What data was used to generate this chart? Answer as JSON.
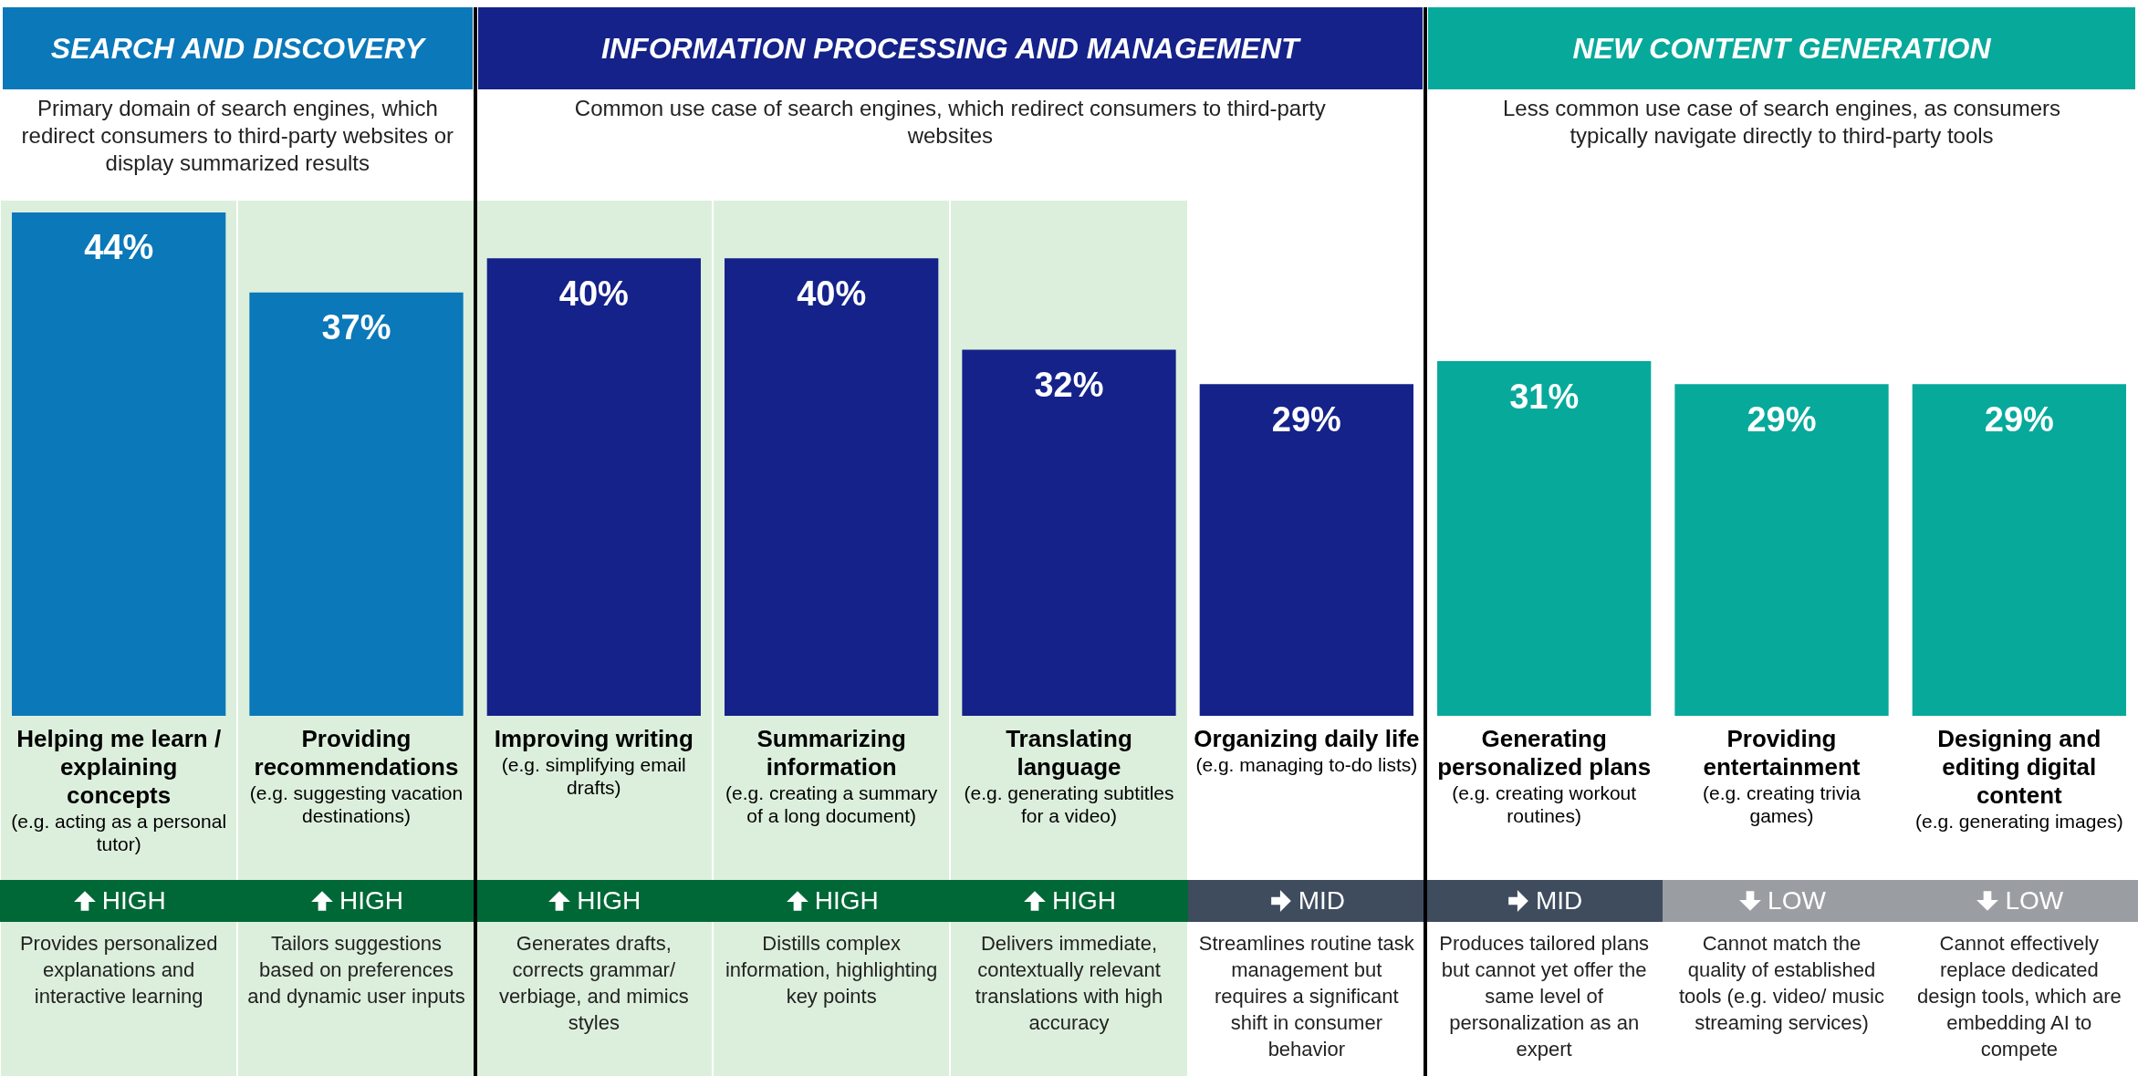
{
  "chart_data": {
    "type": "bar",
    "categories": [
      "Helping me learn / explaining concepts",
      "Providing recommendations",
      "Improving writing",
      "Summarizing information",
      "Translating language",
      "Organizing daily life",
      "Generating personalized plans",
      "Providing entertainment",
      "Designing and editing digital content"
    ],
    "values": [
      44,
      37,
      40,
      40,
      32,
      29,
      31,
      29,
      29
    ],
    "value_labels": [
      "44%",
      "37%",
      "40%",
      "40%",
      "32%",
      "29%",
      "31%",
      "29%",
      "29%"
    ],
    "colors": [
      "#0a78b9",
      "#0a78b9",
      "#14228a",
      "#14228a",
      "#14228a",
      "#14228a",
      "#07a99b",
      "#07a99b",
      "#07a99b"
    ],
    "annotations": [
      "SEARCH AND DISCOVERY",
      "INFORMATION PROCESSING AND MANAGEMENT",
      "NEW CONTENT GENERATION",
      "Primary domain of search engines, which redirect consumers to third-party websites or display summarized results",
      "Common use case of search engines, which redirect consumers to third-party websites",
      "Less common use case of search engines, as consumers typically navigate directly to third-party tools",
      "(e.g. acting as a personal tutor)",
      "(e.g. suggesting vacation destinations)",
      "(e.g. simplifying email drafts)",
      "(e.g. creating a summary of a long document)",
      "(e.g. generating subtitles for a video)",
      "(e.g. managing to-do lists)",
      "(e.g. creating workout routines)",
      "(e.g. creating trivia games)",
      "(e.g. generating images)",
      "HIGH",
      "HIGH",
      "HIGH",
      "HIGH",
      "HIGH",
      "MID",
      "MID",
      "LOW",
      "LOW",
      "Provides personalized explanations and interactive learning",
      "Tailors suggestions based on preferences and dynamic user inputs",
      "Generates drafts, corrects grammar/ verbiage, and mimics styles",
      "Distills complex information, highlighting key points",
      "Delivers immediate, contextually relevant translations with high accuracy",
      "Streamlines routine task management but requires a significant shift in consumer behavior",
      "Produces tailored plans but cannot yet offer the same level of personalization as an expert",
      "Cannot match the quality of established tools (e.g. video/ music streaming services)",
      "Cannot effectively replace dedicated design tools, which are embedding AI to compete"
    ],
    "data_labels": true
  }
}
